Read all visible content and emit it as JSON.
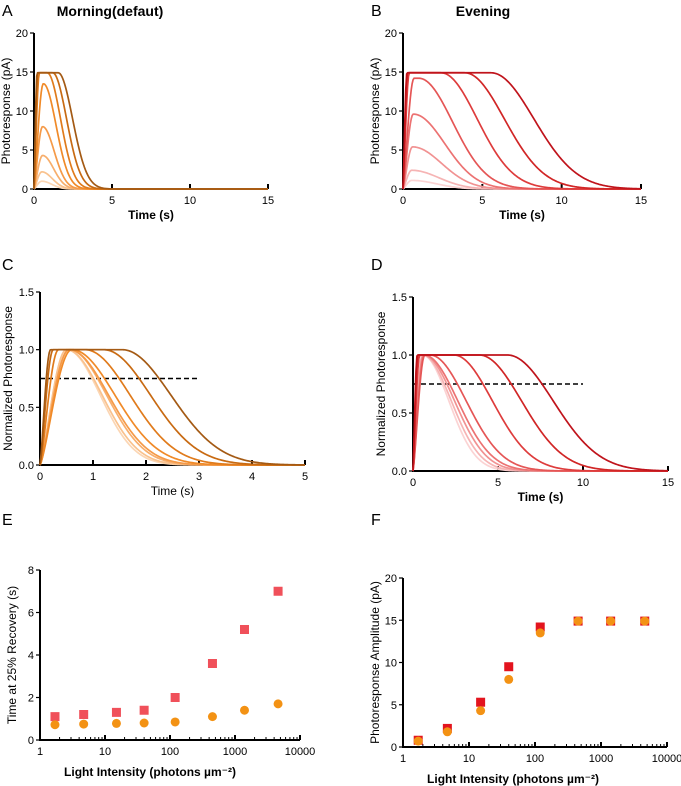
{
  "chart_data": [
    {
      "panel": "A",
      "title": "Morning(defaut)",
      "type": "line",
      "xlabel": "Time (s)",
      "ylabel": "Photoresponse (pA)",
      "xlim": [
        0,
        15
      ],
      "ylim": [
        0,
        20
      ],
      "xticks": [
        0,
        5,
        10,
        15
      ],
      "yticks": [
        0,
        5,
        10,
        15,
        20
      ],
      "colors": [
        "#fbd6b4",
        "#f9c28e",
        "#f7ae6c",
        "#f59a48",
        "#f08a28",
        "#e07b1c",
        "#c86a12",
        "#a45a14"
      ],
      "series": [
        {
          "peak": 1.0,
          "tpeak": 0.5,
          "plateau": 0,
          "recovery": 0.9
        },
        {
          "peak": 2.2,
          "tpeak": 0.5,
          "plateau": 0,
          "recovery": 0.95
        },
        {
          "peak": 4.3,
          "tpeak": 0.55,
          "plateau": 0,
          "recovery": 1.0
        },
        {
          "peak": 8.0,
          "tpeak": 0.55,
          "plateau": 0,
          "recovery": 1.05
        },
        {
          "peak": 13.5,
          "tpeak": 0.6,
          "plateau": 0,
          "recovery": 1.15
        },
        {
          "peak": 14.9,
          "tpeak": 0.35,
          "plateau": 0.5,
          "recovery": 1.2
        },
        {
          "peak": 14.9,
          "tpeak": 0.25,
          "plateau": 0.95,
          "recovery": 1.25
        },
        {
          "peak": 14.9,
          "tpeak": 0.2,
          "plateau": 1.35,
          "recovery": 1.3
        }
      ]
    },
    {
      "panel": "B",
      "title": "Evening",
      "type": "line",
      "xlabel": "Time (s)",
      "ylabel": "Photoresponse (pA)",
      "xlim": [
        0,
        15
      ],
      "ylim": [
        0,
        20
      ],
      "xticks": [
        0,
        5,
        10,
        15
      ],
      "yticks": [
        0,
        5,
        10,
        15,
        20
      ],
      "colors": [
        "#fbd3d3",
        "#f6b4b4",
        "#f19292",
        "#ec7272",
        "#e55656",
        "#de3c3c",
        "#d12626",
        "#c0141c"
      ],
      "series": [
        {
          "peak": 1.1,
          "tpeak": 0.55,
          "plateau": 0,
          "recovery": 2.2
        },
        {
          "peak": 2.4,
          "tpeak": 0.55,
          "plateau": 0,
          "recovery": 2.4
        },
        {
          "peak": 5.4,
          "tpeak": 0.6,
          "plateau": 0,
          "recovery": 2.6
        },
        {
          "peak": 9.6,
          "tpeak": 0.65,
          "plateau": 0,
          "recovery": 2.8
        },
        {
          "peak": 14.2,
          "tpeak": 0.7,
          "plateau": 0.3,
          "recovery": 3.0
        },
        {
          "peak": 14.9,
          "tpeak": 0.4,
          "plateau": 2.0,
          "recovery": 3.2
        },
        {
          "peak": 14.9,
          "tpeak": 0.3,
          "plateau": 3.6,
          "recovery": 3.5
        },
        {
          "peak": 14.9,
          "tpeak": 0.25,
          "plateau": 5.3,
          "recovery": 3.8
        }
      ]
    },
    {
      "panel": "C",
      "title": "",
      "type": "line",
      "xlabel": "Time (s)",
      "ylabel": "Normalized Photoresponse",
      "xlim": [
        0,
        5
      ],
      "ylim": [
        0,
        1.5
      ],
      "xticks": [
        0,
        1,
        2,
        3,
        4,
        5
      ],
      "yticks": [
        0.0,
        0.5,
        1.0,
        1.5
      ],
      "reference_line": {
        "y": 0.75,
        "x": [
          0,
          3
        ]
      },
      "colors": [
        "#fbd6b4",
        "#f9c28e",
        "#f7ae6c",
        "#f59a48",
        "#f08a28",
        "#e07b1c",
        "#c86a12",
        "#a45a14"
      ],
      "series": [
        {
          "peak": 1.0,
          "tpeak": 0.5,
          "plateau": 0,
          "recovery": 0.9
        },
        {
          "peak": 1.0,
          "tpeak": 0.5,
          "plateau": 0,
          "recovery": 0.95
        },
        {
          "peak": 1.0,
          "tpeak": 0.55,
          "plateau": 0,
          "recovery": 1.0
        },
        {
          "peak": 1.0,
          "tpeak": 0.55,
          "plateau": 0,
          "recovery": 1.05
        },
        {
          "peak": 1.0,
          "tpeak": 0.6,
          "plateau": 0,
          "recovery": 1.15
        },
        {
          "peak": 1.0,
          "tpeak": 0.35,
          "plateau": 0.5,
          "recovery": 1.2
        },
        {
          "peak": 1.0,
          "tpeak": 0.25,
          "plateau": 0.95,
          "recovery": 1.25
        },
        {
          "peak": 1.0,
          "tpeak": 0.2,
          "plateau": 1.35,
          "recovery": 1.3
        }
      ]
    },
    {
      "panel": "D",
      "title": "",
      "type": "line",
      "xlabel": "Time (s)",
      "ylabel": "Normalized Photoresponse",
      "xlim": [
        0,
        15
      ],
      "ylim": [
        0,
        1.5
      ],
      "xticks": [
        0,
        5,
        10,
        15
      ],
      "yticks": [
        0.0,
        0.5,
        1.0,
        1.5
      ],
      "reference_line": {
        "y": 0.75,
        "x": [
          0,
          10
        ]
      },
      "colors": [
        "#fbd3d3",
        "#f6b4b4",
        "#f19292",
        "#ec7272",
        "#e55656",
        "#de3c3c",
        "#d12626",
        "#c0141c"
      ],
      "series": [
        {
          "peak": 1.0,
          "tpeak": 0.55,
          "plateau": 0,
          "recovery": 2.2
        },
        {
          "peak": 1.0,
          "tpeak": 0.55,
          "plateau": 0,
          "recovery": 2.4
        },
        {
          "peak": 1.0,
          "tpeak": 0.6,
          "plateau": 0,
          "recovery": 2.6
        },
        {
          "peak": 1.0,
          "tpeak": 0.65,
          "plateau": 0,
          "recovery": 2.8
        },
        {
          "peak": 1.0,
          "tpeak": 0.7,
          "plateau": 0.3,
          "recovery": 3.0
        },
        {
          "peak": 1.0,
          "tpeak": 0.4,
          "plateau": 2.0,
          "recovery": 3.2
        },
        {
          "peak": 1.0,
          "tpeak": 0.3,
          "plateau": 3.6,
          "recovery": 3.5
        },
        {
          "peak": 1.0,
          "tpeak": 0.25,
          "plateau": 5.3,
          "recovery": 3.8
        }
      ]
    },
    {
      "panel": "E",
      "title": "",
      "type": "scatter",
      "xscale": "log",
      "xlabel": "Light Intensity (photons µm⁻²)",
      "ylabel": "Time at 25% Recovery (s)",
      "xlim": [
        1,
        10000
      ],
      "ylim": [
        0,
        8
      ],
      "xticks": [
        1,
        10,
        100,
        1000,
        10000
      ],
      "yticks": [
        0,
        2,
        4,
        6,
        8
      ],
      "x": [
        1.7,
        4.7,
        15,
        40,
        120,
        450,
        1400,
        4600
      ],
      "series": [
        {
          "marker": "square",
          "color": "#f0505a",
          "values": [
            1.1,
            1.2,
            1.3,
            1.4,
            2.0,
            3.6,
            5.2,
            7.0
          ]
        },
        {
          "marker": "circle",
          "color": "#f39214",
          "values": [
            0.72,
            0.75,
            0.78,
            0.8,
            0.85,
            1.1,
            1.4,
            1.7
          ]
        }
      ]
    },
    {
      "panel": "F",
      "title": "",
      "type": "scatter",
      "xscale": "log",
      "xlabel": "Light Intensity (photons µm⁻²)",
      "ylabel": "Photoresponse Amplitude (pA)",
      "xlim": [
        1,
        10000
      ],
      "ylim": [
        0,
        20
      ],
      "xticks": [
        1,
        10,
        100,
        1000,
        10000
      ],
      "yticks": [
        0,
        5,
        10,
        15,
        20
      ],
      "x": [
        1.7,
        4.7,
        15,
        40,
        120,
        450,
        1400,
        4600
      ],
      "series": [
        {
          "marker": "square",
          "color": "#e3141e",
          "values": [
            0.8,
            2.2,
            5.3,
            9.5,
            14.2,
            14.9,
            14.9,
            14.9
          ]
        },
        {
          "marker": "circle",
          "color": "#f39214",
          "values": [
            0.7,
            1.8,
            4.3,
            8.0,
            13.5,
            14.9,
            14.9,
            14.9
          ]
        }
      ]
    }
  ]
}
